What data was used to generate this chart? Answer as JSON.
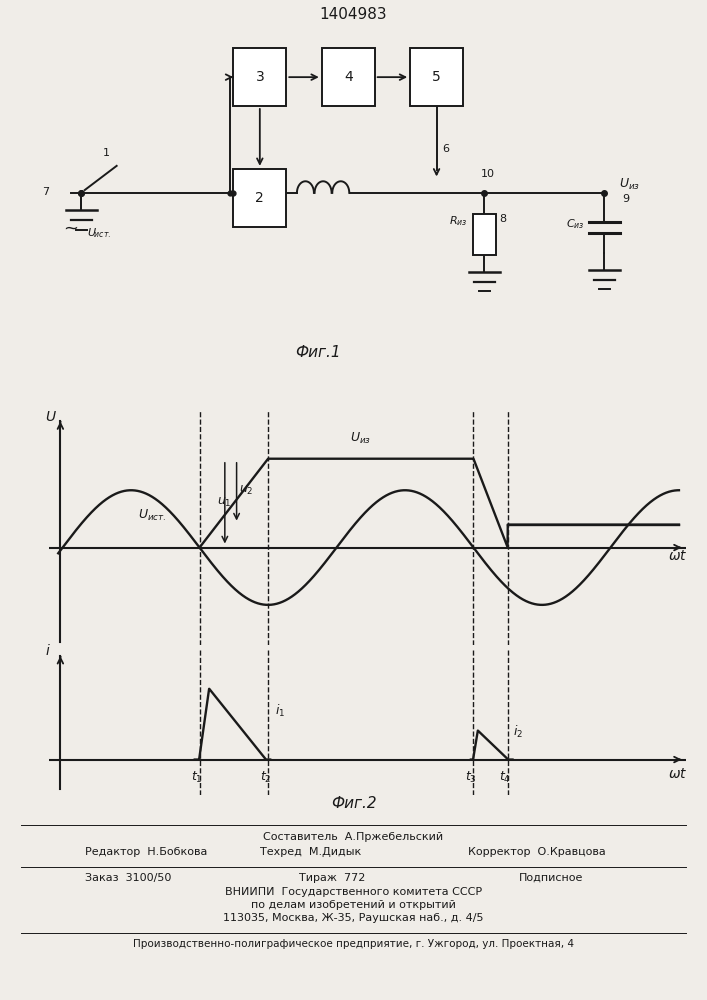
{
  "title": "1404983",
  "fig1_caption": "Фиг.1",
  "fig2_caption": "Фиг.2",
  "background_color": "#f0ede8",
  "line_color": "#1a1a1a",
  "footer_lines": [
    "Составитель  А.Пржебельский",
    "Редактор  Н.Бобкова",
    "Техред  М.Дидык",
    "Корректор  О.Кравцова",
    "Заказ  3100/50",
    "Тираж  772",
    "Подписное",
    "ВНИИПИ  Государственного комитета СССР",
    "по делам изобретений и открытий",
    "113035, Москва, Ж-35, Раушская наб., д. 4/5",
    "Производственно-полиграфическое предприятие, г. Ужгород, ул. Проектная, 4"
  ]
}
